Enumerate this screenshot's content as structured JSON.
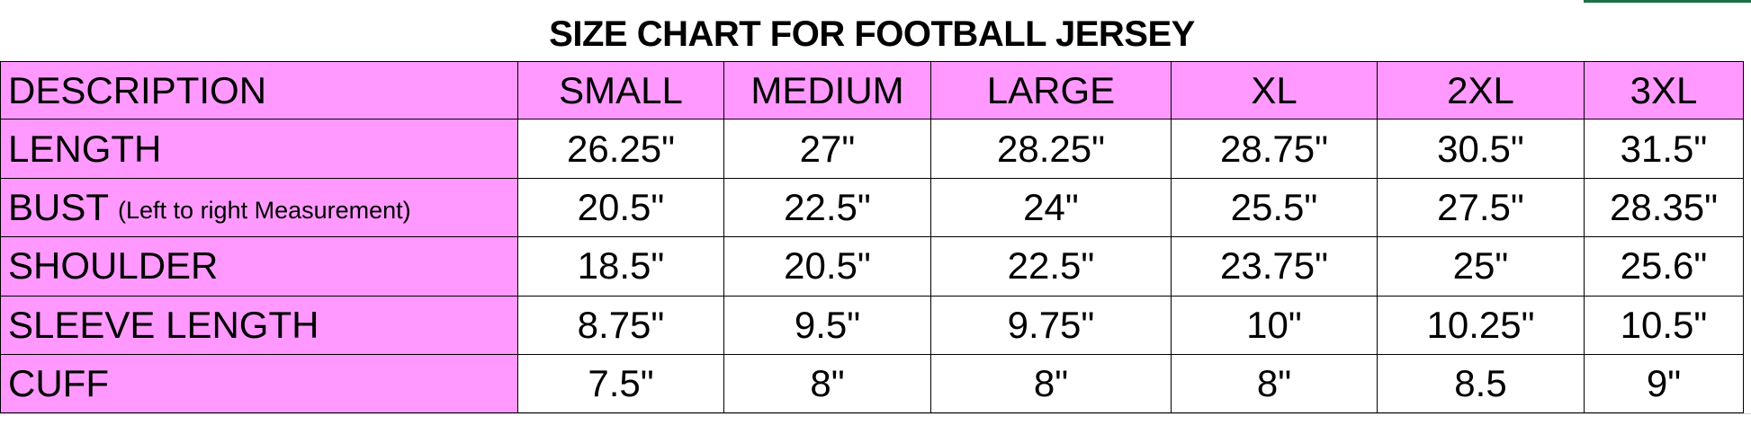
{
  "title": "SIZE CHART FOR FOOTBALL JERSEY",
  "table": {
    "header": [
      "DESCRIPTION",
      "SMALL",
      "MEDIUM",
      "LARGE",
      "XL",
      "2XL",
      "3XL"
    ],
    "rows": [
      {
        "label": "LENGTH",
        "values": [
          "26.25\"",
          "27\"",
          "28.25\"",
          "28.75\"",
          "30.5\"",
          "31.5\""
        ]
      },
      {
        "label": "BUST",
        "note": "(Left to right Measurement)",
        "values": [
          "20.5\"",
          "22.5\"",
          "24\"",
          "25.5\"",
          "27.5\"",
          "28.35\""
        ]
      },
      {
        "label": "SHOULDER",
        "values": [
          "18.5\"",
          "20.5\"",
          "22.5\"",
          "23.75\"",
          "25\"",
          "25.6\""
        ]
      },
      {
        "label": "SLEEVE LENGTH",
        "values": [
          "8.75\"",
          "9.5\"",
          "9.75\"",
          "10\"",
          "10.25\"",
          "10.5\""
        ]
      },
      {
        "label": "CUFF",
        "values": [
          "7.5\"",
          "8\"",
          "8\"",
          "8\"",
          "8.5",
          "9\""
        ]
      }
    ]
  }
}
